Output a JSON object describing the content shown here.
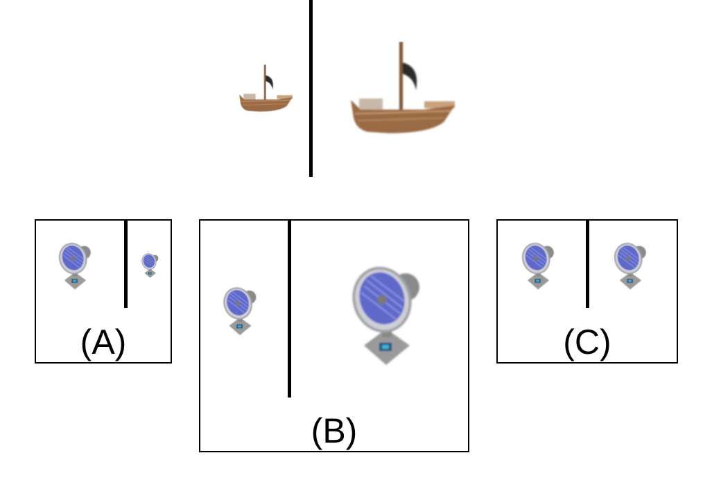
{
  "example": {
    "small_object": "ship-icon",
    "large_object": "ship-icon"
  },
  "options": [
    {
      "label": "(A)",
      "left_object": "fan-icon",
      "right_object": "fan-icon"
    },
    {
      "label": "(B)",
      "left_object": "fan-icon",
      "right_object": "fan-icon"
    },
    {
      "label": "(C)",
      "left_object": "fan-icon",
      "right_object": "fan-icon"
    }
  ],
  "colors": {
    "ship_hull": "#9a6a45",
    "ship_sail": "#2a2a2a",
    "fan_body": "#8e8e8e",
    "fan_blade": "#4b57c8",
    "divider": "#000000"
  }
}
